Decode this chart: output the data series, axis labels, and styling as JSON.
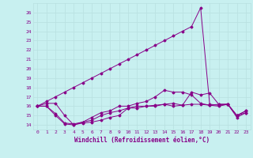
{
  "xlabel": "Windchill (Refroidissement éolien,°C)",
  "bg_color": "#c8f0f0",
  "grid_color": "#b8e0e0",
  "line_color": "#880088",
  "x_ticks": [
    0,
    1,
    2,
    3,
    4,
    5,
    6,
    7,
    8,
    9,
    10,
    11,
    12,
    13,
    14,
    15,
    16,
    17,
    18,
    19,
    20,
    21,
    22,
    23
  ],
  "ylim": [
    13.5,
    27.0
  ],
  "yticks": [
    14,
    15,
    16,
    17,
    18,
    19,
    20,
    21,
    22,
    23,
    24,
    25,
    26
  ],
  "series": [
    [
      16.0,
      16.3,
      16.3,
      15.0,
      14.0,
      14.2,
      14.3,
      14.5,
      14.8,
      15.0,
      15.8,
      16.0,
      16.0,
      16.1,
      16.2,
      16.0,
      16.1,
      16.2,
      16.2,
      16.1,
      16.2,
      16.2,
      15.0,
      15.3
    ],
    [
      16.0,
      16.0,
      15.0,
      14.1,
      14.0,
      14.3,
      14.5,
      15.0,
      15.3,
      15.5,
      15.8,
      15.8,
      16.0,
      16.0,
      16.2,
      16.3,
      16.1,
      17.5,
      17.2,
      17.4,
      16.2,
      16.2,
      14.8,
      15.3
    ],
    [
      16.0,
      16.0,
      15.2,
      14.2,
      14.1,
      14.3,
      14.8,
      15.3,
      15.5,
      16.0,
      16.0,
      16.3,
      16.5,
      17.0,
      17.7,
      17.5,
      17.5,
      17.2,
      16.3,
      16.1,
      16.0,
      16.2,
      15.0,
      15.5
    ],
    [
      16.0,
      16.5,
      17.0,
      17.5,
      18.0,
      18.5,
      19.0,
      19.5,
      20.0,
      20.5,
      21.0,
      21.5,
      22.0,
      22.5,
      23.0,
      23.5,
      24.0,
      24.5,
      26.5,
      16.2,
      16.1,
      16.2,
      15.0,
      15.5
    ]
  ]
}
